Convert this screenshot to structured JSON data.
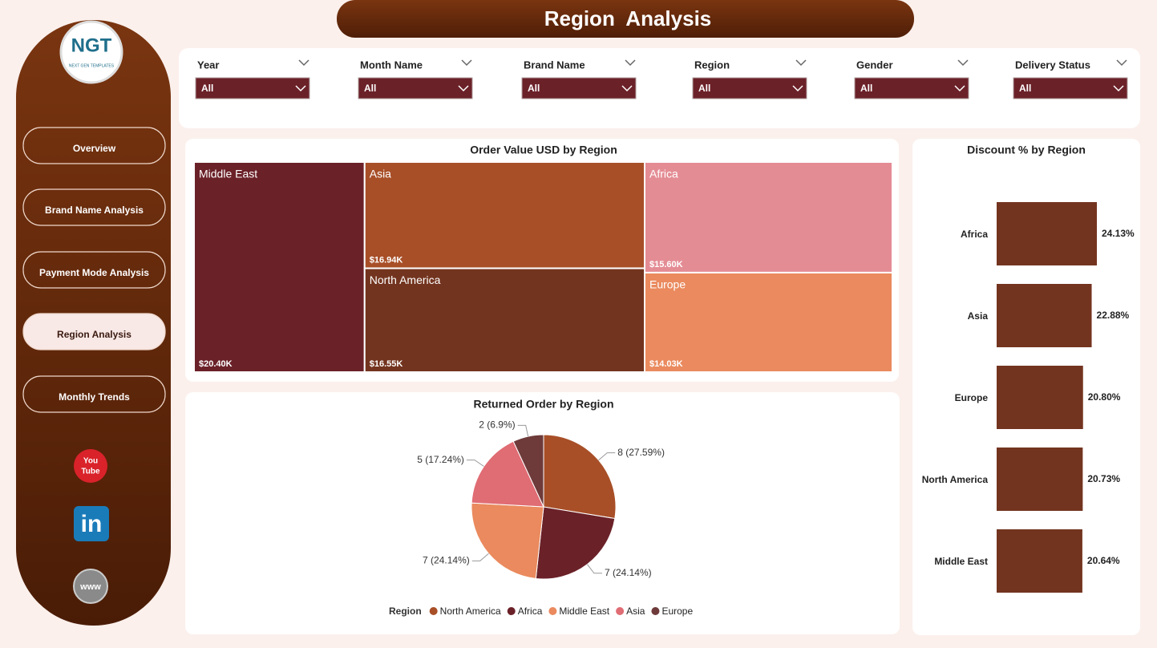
{
  "header": {
    "title": "Region  Analysis"
  },
  "logo": {
    "text": "NGT",
    "subtext": "NEXT GEN TEMPLATES"
  },
  "nav": [
    "Overview",
    "Brand Name Analysis",
    "Payment Mode Analysis",
    "Region Analysis",
    "Monthly Trends"
  ],
  "social": {
    "youtube": [
      "You",
      "Tube"
    ],
    "linkedin": "in",
    "web": "www"
  },
  "filters": [
    {
      "label": "Year",
      "value": "All"
    },
    {
      "label": "Month Name",
      "value": "All"
    },
    {
      "label": "Brand Name",
      "value": "All"
    },
    {
      "label": "Region",
      "value": "All"
    },
    {
      "label": "Gender",
      "value": "All"
    },
    {
      "label": "Delivery Status",
      "value": "All"
    }
  ],
  "chart_data": [
    {
      "type": "treemap",
      "title": "Order Value USD by Region",
      "categories": [
        "Middle East",
        "Asia",
        "North America",
        "Africa",
        "Europe"
      ],
      "values": [
        20400,
        16940,
        16550,
        15600,
        14030
      ],
      "value_labels": [
        "$20.40K",
        "$16.94K",
        "$16.55K",
        "$15.60K",
        "$14.03K"
      ],
      "colors": [
        "#6b2128",
        "#a84f28",
        "#73341f",
        "#e48c94",
        "#ea8a5e"
      ]
    },
    {
      "type": "pie",
      "title": "Returned Order by Region",
      "legend_title": "Region",
      "categories": [
        "North America",
        "Africa",
        "Middle East",
        "Asia",
        "Europe"
      ],
      "values": [
        8,
        7,
        7,
        5,
        2
      ],
      "value_labels": [
        "8 (27.59%)",
        "7 (24.14%)",
        "7 (24.14%)",
        "5 (17.24%)",
        "2 (6.9%)"
      ],
      "colors": [
        "#a84f28",
        "#6b2128",
        "#ea8a5e",
        "#e06c74",
        "#6e3a3a"
      ]
    },
    {
      "type": "bar",
      "orientation": "horizontal",
      "title": "Discount % by Region",
      "categories": [
        "Africa",
        "Asia",
        "Europe",
        "North America",
        "Middle East"
      ],
      "values": [
        24.13,
        22.88,
        20.8,
        20.73,
        20.64
      ],
      "value_labels": [
        "24.13%",
        "22.88%",
        "20.80%",
        "20.73%",
        "20.64%"
      ],
      "color": "#73341f"
    }
  ]
}
